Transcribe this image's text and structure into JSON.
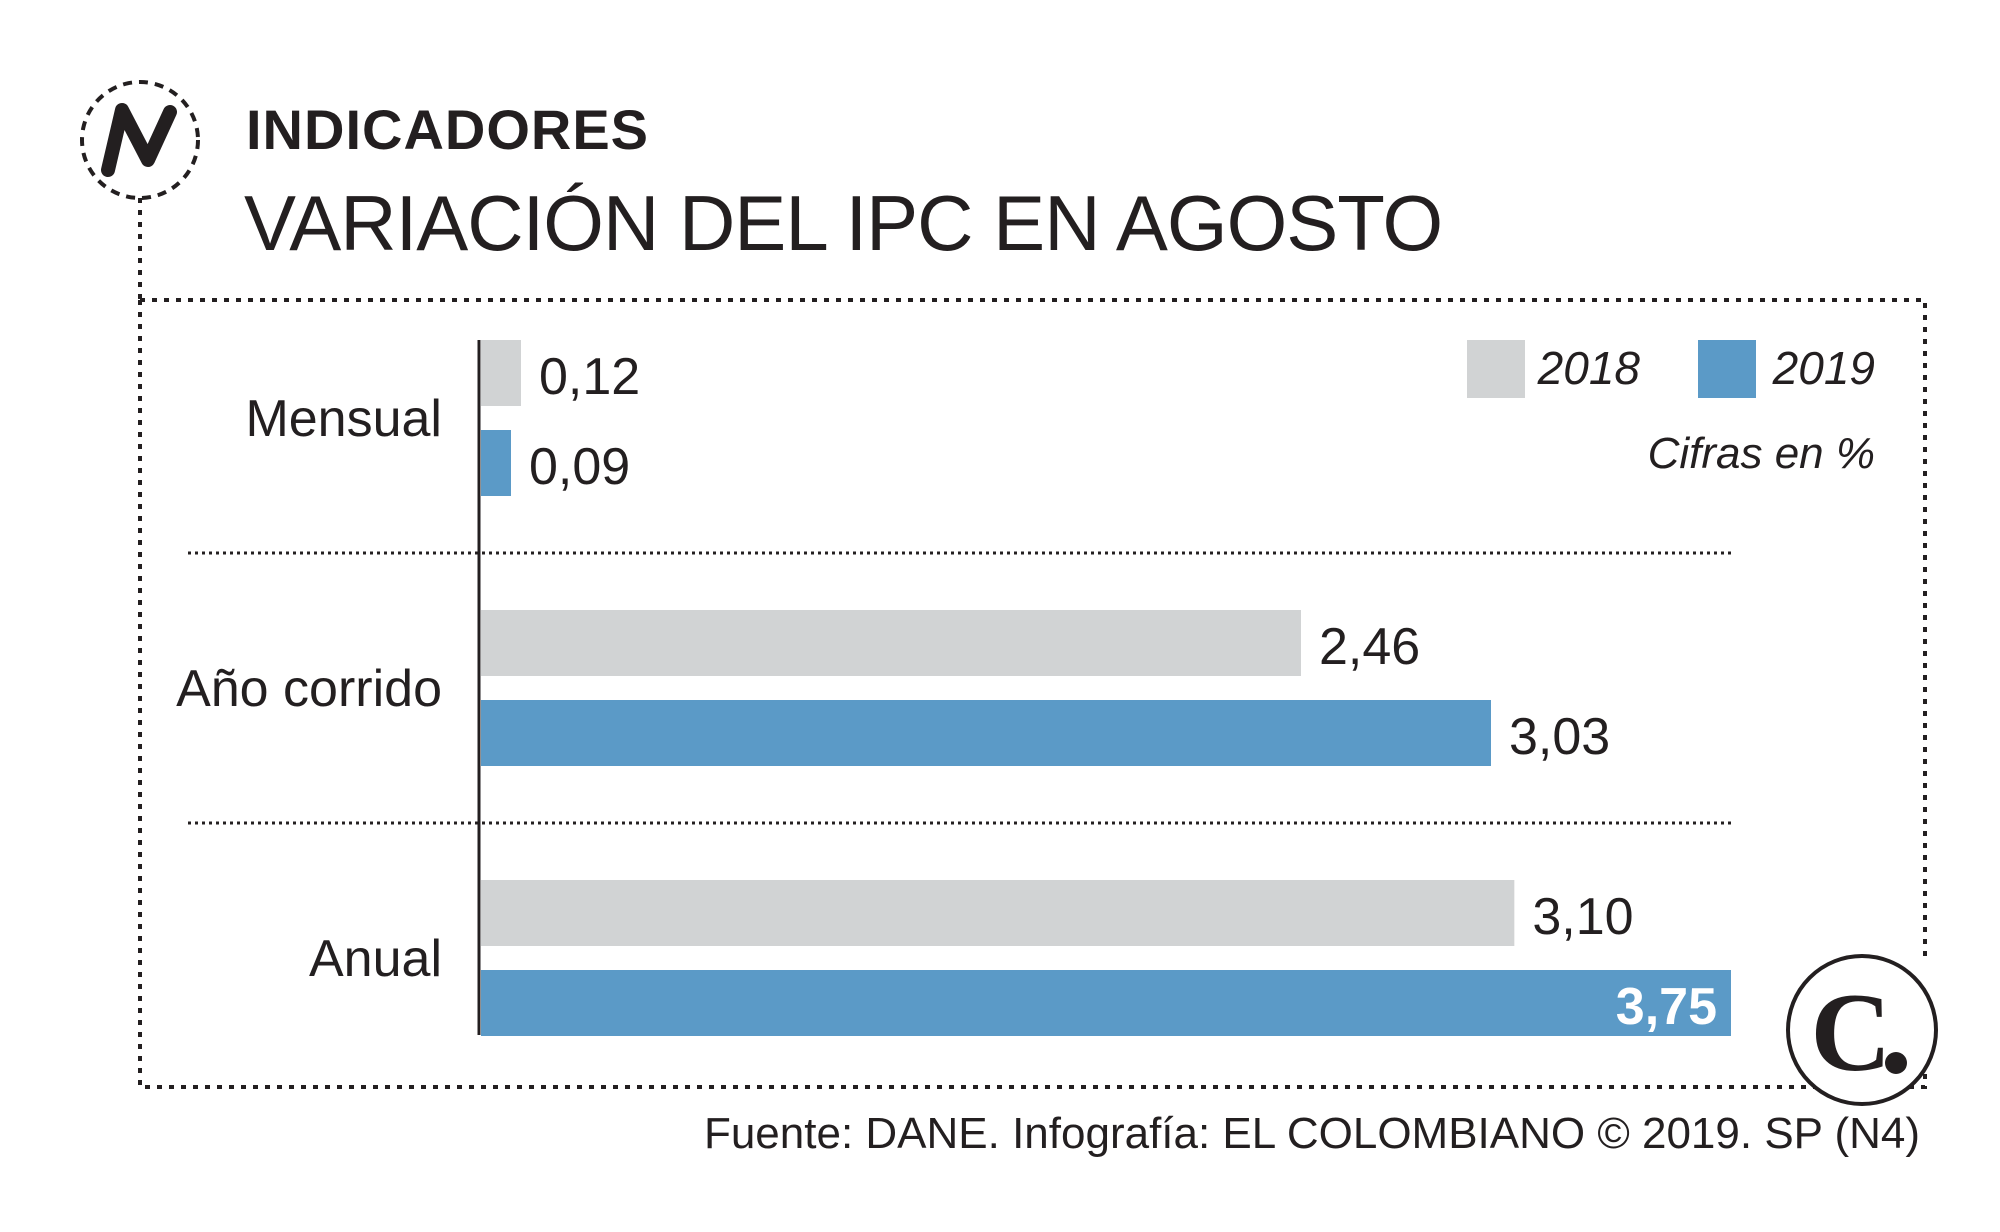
{
  "header": {
    "kicker": "INDICADORES",
    "title": "VARIACIÓN DEL IPC EN AGOSTO"
  },
  "legend": {
    "items": [
      {
        "label": "2018",
        "color": "#d1d3d4"
      },
      {
        "label": "2019",
        "color": "#5b9ac7"
      }
    ],
    "units_note": "Cifras en %"
  },
  "chart_data": {
    "type": "bar",
    "orientation": "horizontal",
    "categories": [
      "Mensual",
      "Año corrido",
      "Anual"
    ],
    "series": [
      {
        "name": "2018",
        "values": [
          0.12,
          2.46,
          3.1
        ],
        "labels": [
          "0,12",
          "2,46",
          "3,10"
        ],
        "color": "#d1d3d4"
      },
      {
        "name": "2019",
        "values": [
          0.09,
          3.03,
          3.75
        ],
        "labels": [
          "0,09",
          "3,03",
          "3,75"
        ],
        "color": "#5b9ac7"
      }
    ],
    "xlim": [
      0,
      3.75
    ],
    "grid": false,
    "legend": "top-right"
  },
  "footer": {
    "source": "Fuente: DANE. Infografía: EL COLOMBIANO © 2019. SP (N4)"
  },
  "brand": {
    "section_icon": "n-indicator-icon",
    "logo_letter": "C",
    "logo_icon": "el-colombiano-logo-icon"
  }
}
